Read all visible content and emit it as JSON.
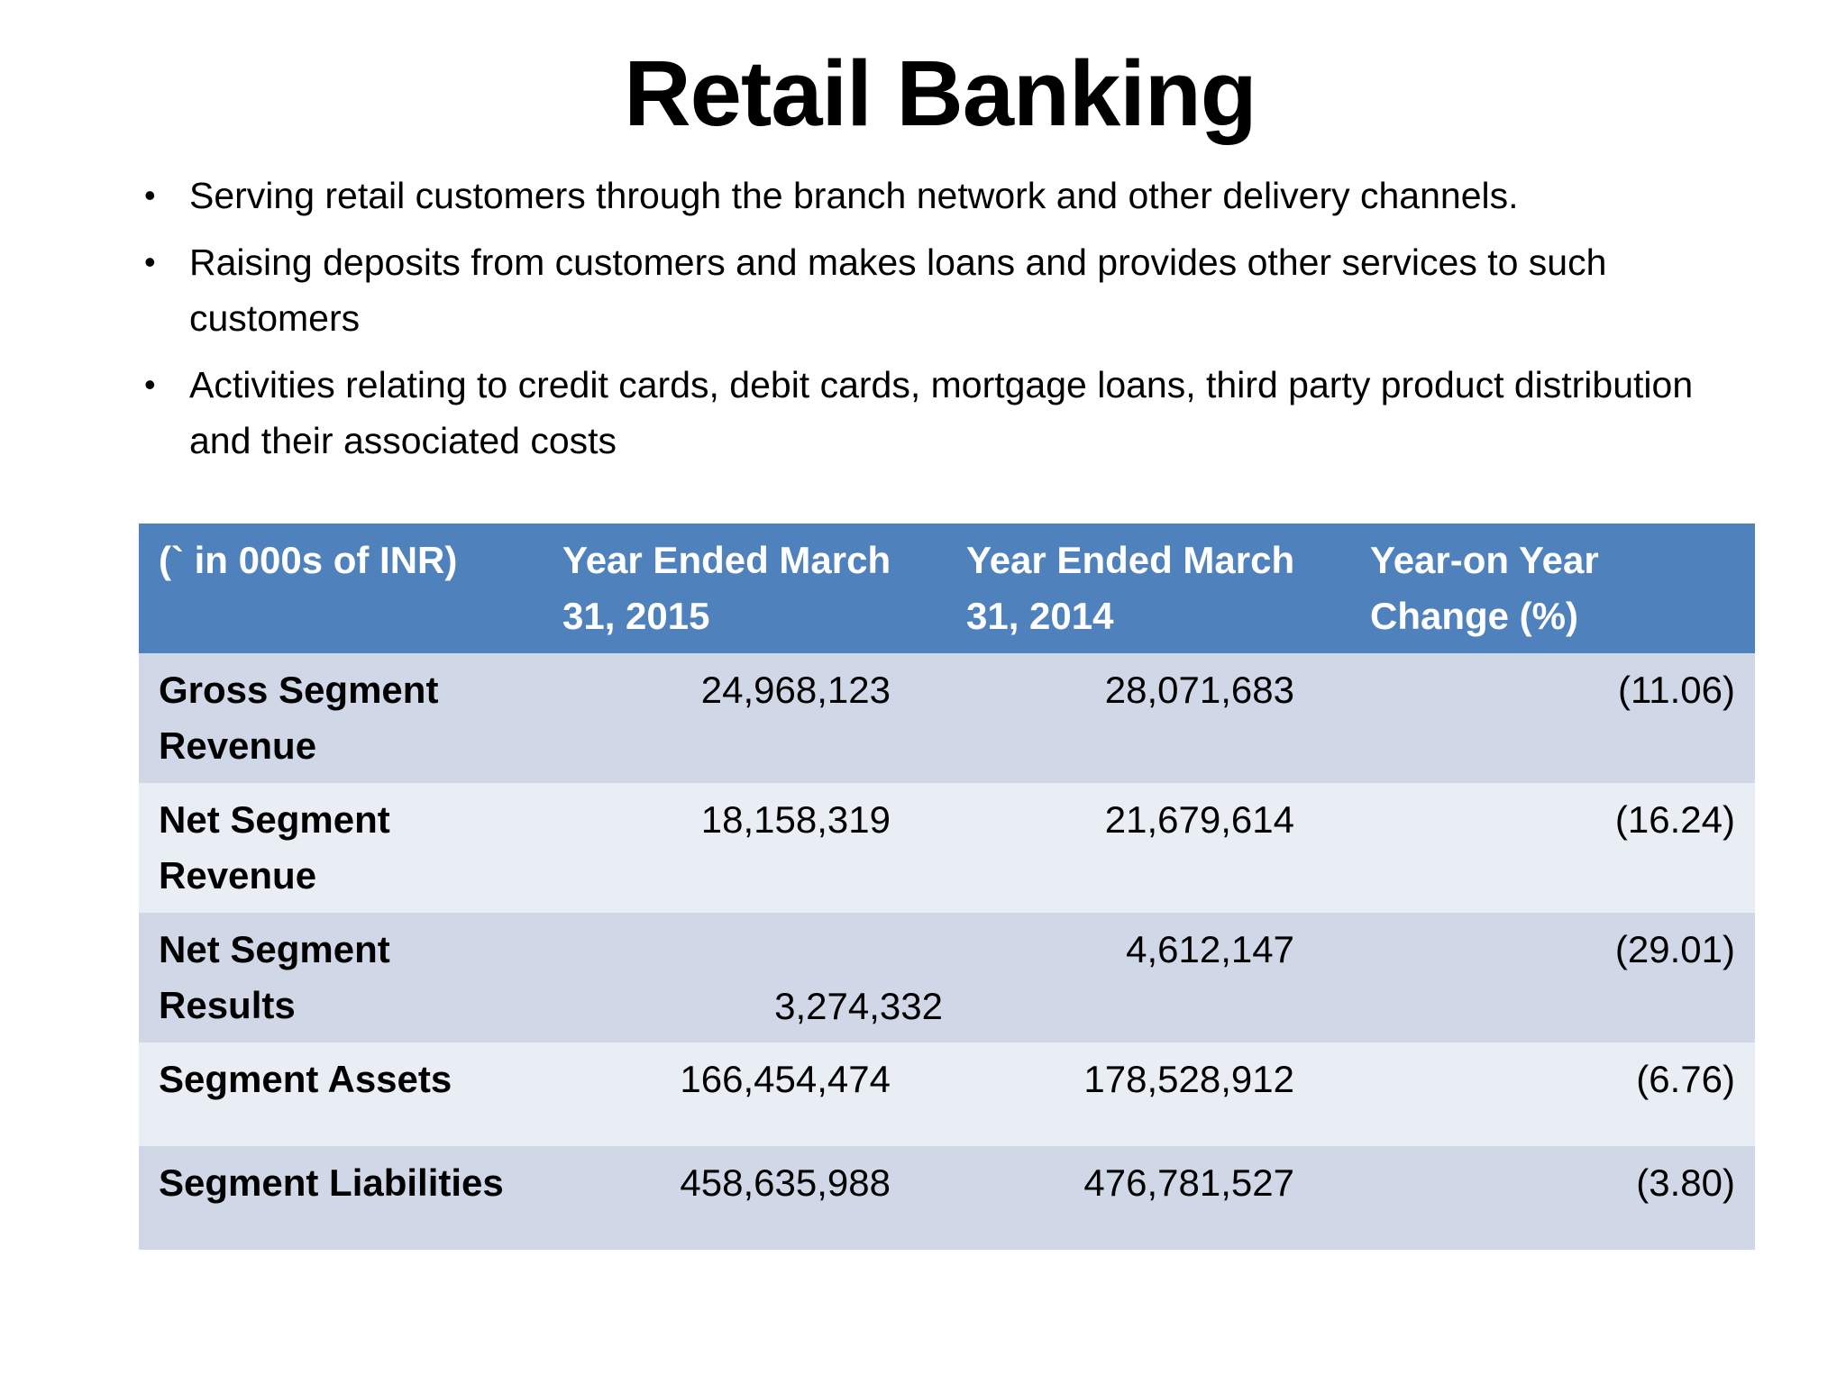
{
  "slide": {
    "title": "Retail Banking",
    "bullets": [
      "Serving retail customers through the branch network and other delivery channels.",
      "Raising deposits from customers and makes loans and provides other services to such customers",
      "Activities relating to credit cards, debit cards, mortgage loans, third party product distribution and their associated costs"
    ]
  },
  "table": {
    "headers": [
      "(` in 000s of INR)",
      "Year Ended March 31, 2015",
      "Year Ended March 31, 2014",
      "Year-on Year Change (%)"
    ],
    "rows": [
      {
        "label": "Gross Segment Revenue",
        "fy2015": "24,968,123",
        "fy2014": "28,071,683",
        "change": "(11.06)"
      },
      {
        "label": "Net Segment Revenue",
        "fy2015": "18,158,319",
        "fy2014": "21,679,614",
        "change": "(16.24)"
      },
      {
        "label": "Net Segment Results",
        "fy2015": "3,274,332",
        "fy2014": "4,612,147",
        "change": "(29.01)"
      },
      {
        "label": "Segment Assets",
        "fy2015": "166,454,474",
        "fy2014": "178,528,912",
        "change": "(6.76)"
      },
      {
        "label": "Segment Liabilities",
        "fy2015": "458,635,988",
        "fy2014": "476,781,527",
        "change": "(3.80)"
      }
    ]
  },
  "colors": {
    "header_bg": "#4f81bd",
    "row_dark": "#d0d8e8",
    "row_light": "#e9edf4"
  }
}
